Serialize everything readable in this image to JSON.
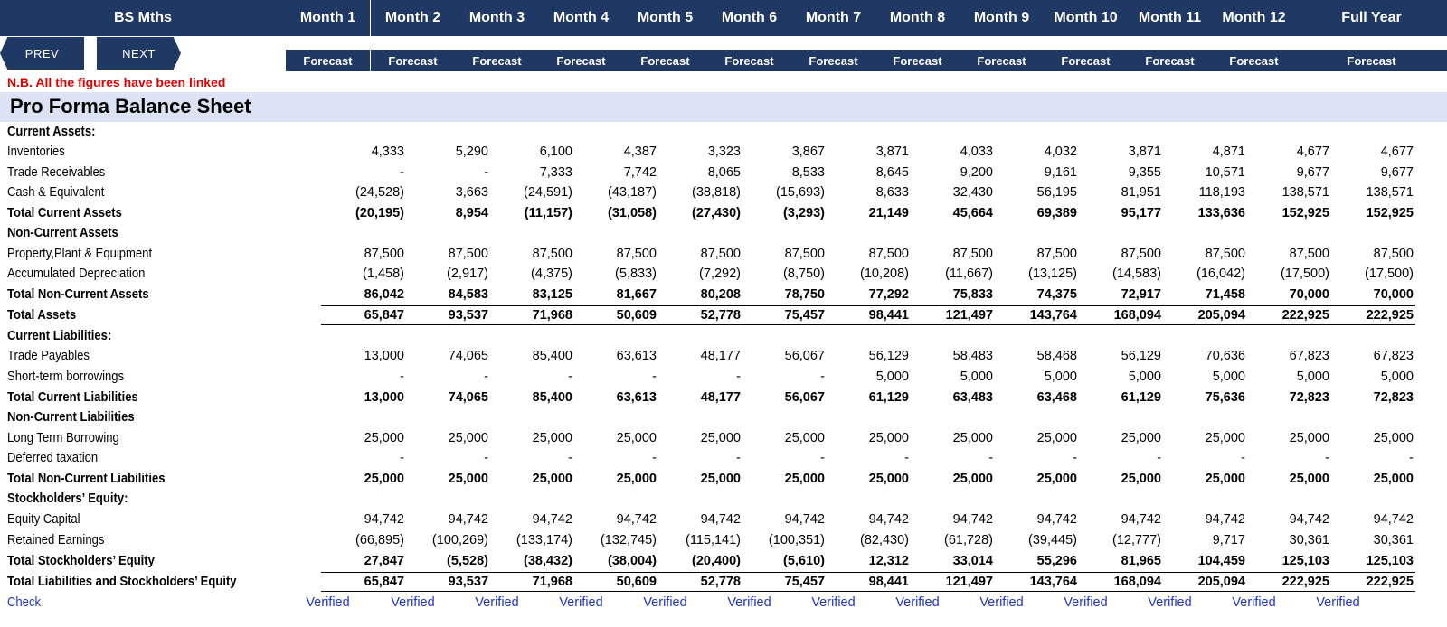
{
  "header": {
    "sheet_label": "BS Mths",
    "months": [
      "Month 1",
      "Month 2",
      "Month 3",
      "Month 4",
      "Month 5",
      "Month 6",
      "Month 7",
      "Month 8",
      "Month 9",
      "Month 10",
      "Month 11",
      "Month 12",
      "Full Year"
    ],
    "sub_label": "Forecast"
  },
  "nav": {
    "prev_label": "PREV",
    "next_label": "NEXT"
  },
  "note": "N.B. All the figures have been linked",
  "title": "Pro Forma Balance Sheet",
  "colors": {
    "header_bg": "#1f3864",
    "title_bg": "#dce3f4",
    "note": "#e00000",
    "check": "#1f34c9"
  },
  "rows": [
    {
      "label": "Current Assets:",
      "style": "h",
      "values": []
    },
    {
      "label": "Inventories",
      "style": "n",
      "values": [
        "4,333",
        "5,290",
        "6,100",
        "4,387",
        "3,323",
        "3,867",
        "3,871",
        "4,033",
        "4,032",
        "3,871",
        "4,871",
        "4,677",
        "4,677"
      ]
    },
    {
      "label": "Trade Receivables",
      "style": "n",
      "values": [
        "-",
        "-",
        "7,333",
        "7,742",
        "8,065",
        "8,533",
        "8,645",
        "9,200",
        "9,161",
        "9,355",
        "10,571",
        "9,677",
        "9,677"
      ]
    },
    {
      "label": "Cash  & Equivalent",
      "style": "n",
      "values": [
        "(24,528)",
        "3,663",
        "(24,591)",
        "(43,187)",
        "(38,818)",
        "(15,693)",
        "8,633",
        "32,430",
        "56,195",
        "81,951",
        "118,193",
        "138,571",
        "138,571"
      ]
    },
    {
      "label": "Total Current Assets",
      "style": "b",
      "values": [
        "(20,195)",
        "8,954",
        "(11,157)",
        "(31,058)",
        "(27,430)",
        "(3,293)",
        "21,149",
        "45,664",
        "69,389",
        "95,177",
        "133,636",
        "152,925",
        "152,925"
      ]
    },
    {
      "label": "Non-Current Assets",
      "style": "h",
      "values": []
    },
    {
      "label": "Property,Plant & Equipment",
      "style": "n",
      "values": [
        "87,500",
        "87,500",
        "87,500",
        "87,500",
        "87,500",
        "87,500",
        "87,500",
        "87,500",
        "87,500",
        "87,500",
        "87,500",
        "87,500",
        "87,500"
      ]
    },
    {
      "label": "Accumulated Depreciation",
      "style": "n",
      "values": [
        "(1,458)",
        "(2,917)",
        "(4,375)",
        "(5,833)",
        "(7,292)",
        "(8,750)",
        "(10,208)",
        "(11,667)",
        "(13,125)",
        "(14,583)",
        "(16,042)",
        "(17,500)",
        "(17,500)"
      ]
    },
    {
      "label": "Total Non-Current Assets",
      "style": "b",
      "values": [
        "86,042",
        "84,583",
        "83,125",
        "81,667",
        "80,208",
        "78,750",
        "77,292",
        "75,833",
        "74,375",
        "72,917",
        "71,458",
        "70,000",
        "70,000"
      ]
    },
    {
      "label": "Total Assets",
      "style": "bt",
      "values": [
        "65,847",
        "93,537",
        "71,968",
        "50,609",
        "52,778",
        "75,457",
        "98,441",
        "121,497",
        "143,764",
        "168,094",
        "205,094",
        "222,925",
        "222,925"
      ]
    },
    {
      "label": "Current Liabilities:",
      "style": "h",
      "values": []
    },
    {
      "label": "Trade Payables",
      "style": "n",
      "values": [
        "13,000",
        "74,065",
        "85,400",
        "63,613",
        "48,177",
        "56,067",
        "56,129",
        "58,483",
        "58,468",
        "56,129",
        "70,636",
        "67,823",
        "67,823"
      ]
    },
    {
      "label": "Short-term borrowings",
      "style": "n",
      "values": [
        "-",
        "-",
        "-",
        "-",
        "-",
        "-",
        "5,000",
        "5,000",
        "5,000",
        "5,000",
        "5,000",
        "5,000",
        "5,000"
      ]
    },
    {
      "label": "Total Current Liabilities",
      "style": "b",
      "values": [
        "13,000",
        "74,065",
        "85,400",
        "63,613",
        "48,177",
        "56,067",
        "61,129",
        "63,483",
        "63,468",
        "61,129",
        "75,636",
        "72,823",
        "72,823"
      ]
    },
    {
      "label": "Non-Current Liabilities",
      "style": "h",
      "values": []
    },
    {
      "label": "Long Term Borrowing",
      "style": "n",
      "values": [
        "25,000",
        "25,000",
        "25,000",
        "25,000",
        "25,000",
        "25,000",
        "25,000",
        "25,000",
        "25,000",
        "25,000",
        "25,000",
        "25,000",
        "25,000"
      ]
    },
    {
      "label": "Deferred taxation",
      "style": "n",
      "values": [
        "-",
        "-",
        "-",
        "-",
        "-",
        "-",
        "-",
        "-",
        "-",
        "-",
        "-",
        "-",
        "-"
      ]
    },
    {
      "label": "Total Non-Current Liabilities",
      "style": "b",
      "values": [
        "25,000",
        "25,000",
        "25,000",
        "25,000",
        "25,000",
        "25,000",
        "25,000",
        "25,000",
        "25,000",
        "25,000",
        "25,000",
        "25,000",
        "25,000"
      ]
    },
    {
      "label": "Stockholders’ Equity:",
      "style": "h",
      "values": []
    },
    {
      "label": "Equity Capital",
      "style": "n",
      "values": [
        "94,742",
        "94,742",
        "94,742",
        "94,742",
        "94,742",
        "94,742",
        "94,742",
        "94,742",
        "94,742",
        "94,742",
        "94,742",
        "94,742",
        "94,742"
      ]
    },
    {
      "label": "Retained Earnings",
      "style": "n",
      "values": [
        "(66,895)",
        "(100,269)",
        "(133,174)",
        "(132,745)",
        "(115,141)",
        "(100,351)",
        "(82,430)",
        "(61,728)",
        "(39,445)",
        "(12,777)",
        "9,717",
        "30,361",
        "30,361"
      ]
    },
    {
      "label": "Total Stockholders’ Equity",
      "style": "b",
      "values": [
        "27,847",
        "(5,528)",
        "(38,432)",
        "(38,004)",
        "(20,400)",
        "(5,610)",
        "12,312",
        "33,014",
        "55,296",
        "81,965",
        "104,459",
        "125,103",
        "125,103"
      ]
    },
    {
      "label": "Total Liabilities and Stockholders’ Equity",
      "style": "bt",
      "values": [
        "65,847",
        "93,537",
        "71,968",
        "50,609",
        "52,778",
        "75,457",
        "98,441",
        "121,497",
        "143,764",
        "168,094",
        "205,094",
        "222,925",
        "222,925"
      ]
    },
    {
      "label": "Check",
      "style": "chk",
      "values": [
        "Verified",
        "Verified",
        "Verified",
        "Verified",
        "Verified",
        "Verified",
        "Verified",
        "Verified",
        "Verified",
        "Verified",
        "Verified",
        "Verified",
        "Verified"
      ]
    }
  ]
}
